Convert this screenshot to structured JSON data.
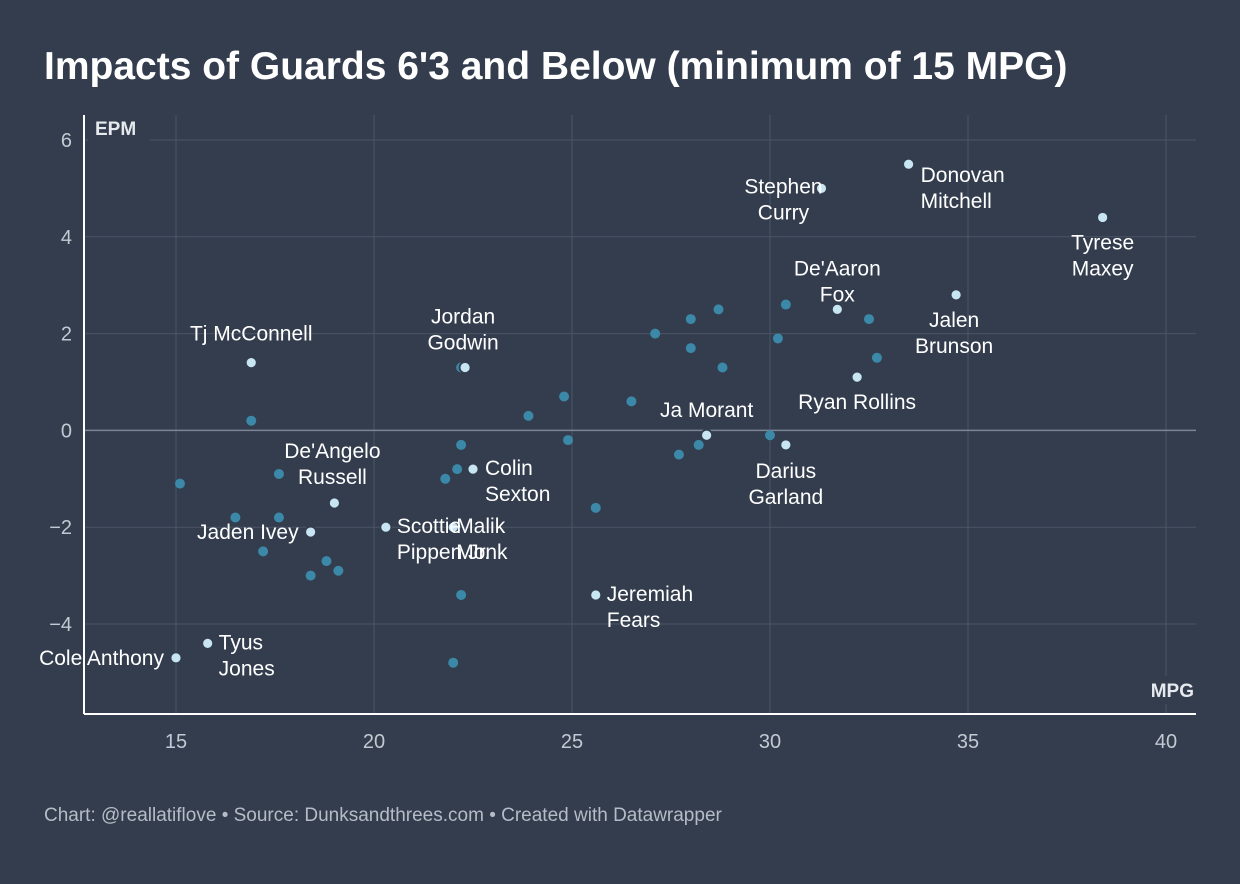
{
  "title": "Impacts of Guards 6'3 and Below (minimum of 15 MPG)",
  "footer": "Chart: @reallatiflove • Source: Dunksandthrees.com • Created with Datawrapper",
  "colors": {
    "background": "#333d4d",
    "grid": "#4a5566",
    "axis": "#ffffff",
    "zero_line": "#7c8594",
    "point": "#3b88a8",
    "highlight_fill": "#c7e5f2",
    "highlight_stroke": "#333d4d",
    "label": "#ffffff"
  },
  "chart_data": {
    "type": "scatter",
    "title": "Impacts of Guards 6'3 and Below (minimum of 15 MPG)",
    "xlabel": "MPG",
    "ylabel": "EPM",
    "xlim": [
      12.7,
      40.8
    ],
    "ylim": [
      -5.8,
      6.5
    ],
    "xticks": [
      15,
      20,
      25,
      30,
      35,
      40
    ],
    "yticks": [
      -4,
      -2,
      0,
      2,
      4,
      6
    ],
    "ytick_labels": [
      "−4",
      "−2",
      "0",
      "2",
      "4",
      "6"
    ],
    "grid": true,
    "points": [
      {
        "x": 33.5,
        "y": 5.5,
        "label": [
          "Donovan",
          "Mitchell"
        ],
        "highlight": true
      },
      {
        "x": 31.3,
        "y": 5.0,
        "label": [
          "Stephen",
          "Curry"
        ],
        "highlight": true
      },
      {
        "x": 38.4,
        "y": 4.4,
        "label": [
          "Tyrese",
          "Maxey"
        ],
        "highlight": true
      },
      {
        "x": 31.7,
        "y": 2.5,
        "label": [
          "De'Aaron",
          "Fox"
        ],
        "highlight": true
      },
      {
        "x": 34.7,
        "y": 2.8,
        "label": [
          "Jalen",
          "Brunson"
        ],
        "highlight": true
      },
      {
        "x": 32.2,
        "y": 1.1,
        "label": [
          "Ryan Rollins"
        ],
        "highlight": true
      },
      {
        "x": 16.9,
        "y": 1.4,
        "label": [
          "Tj McConnell"
        ],
        "highlight": true
      },
      {
        "x": 22.3,
        "y": 1.3,
        "label": [
          "Jordan",
          "Godwin"
        ],
        "highlight": true
      },
      {
        "x": 28.4,
        "y": -0.1,
        "label": [
          "Ja Morant"
        ],
        "highlight": true
      },
      {
        "x": 30.4,
        "y": -0.3,
        "label": [
          "Darius",
          "Garland"
        ],
        "highlight": true
      },
      {
        "x": 19.0,
        "y": -1.5,
        "label": [
          "De'Angelo",
          "Russell"
        ],
        "highlight": true
      },
      {
        "x": 22.5,
        "y": -0.8,
        "label": [
          "Colin",
          "Sexton"
        ],
        "highlight": true
      },
      {
        "x": 18.4,
        "y": -2.1,
        "label": [
          "Jaden Ivey"
        ],
        "highlight": true
      },
      {
        "x": 20.3,
        "y": -2.0,
        "label": [
          "Scottie",
          "Pippen Jr."
        ],
        "highlight": true
      },
      {
        "x": 22.0,
        "y": -2.0,
        "label": [
          "Malik",
          "Monk"
        ],
        "highlight": true
      },
      {
        "x": 25.6,
        "y": -3.4,
        "label": [
          "Jeremiah",
          "Fears"
        ],
        "highlight": true
      },
      {
        "x": 15.8,
        "y": -4.4,
        "label": [
          "Tyus",
          "Jones"
        ],
        "highlight": true
      },
      {
        "x": 15.0,
        "y": -4.7,
        "label": [
          "Cole Anthony"
        ],
        "highlight": true
      },
      {
        "x": 30.4,
        "y": 2.6
      },
      {
        "x": 28.7,
        "y": 2.5
      },
      {
        "x": 28.0,
        "y": 2.3
      },
      {
        "x": 32.5,
        "y": 2.3
      },
      {
        "x": 27.1,
        "y": 2.0
      },
      {
        "x": 30.2,
        "y": 1.9
      },
      {
        "x": 28.0,
        "y": 1.7
      },
      {
        "x": 32.7,
        "y": 1.5
      },
      {
        "x": 28.8,
        "y": 1.3
      },
      {
        "x": 22.2,
        "y": 1.3
      },
      {
        "x": 24.8,
        "y": 0.7
      },
      {
        "x": 26.5,
        "y": 0.6
      },
      {
        "x": 23.9,
        "y": 0.3
      },
      {
        "x": 16.9,
        "y": 0.2
      },
      {
        "x": 24.9,
        "y": -0.2
      },
      {
        "x": 22.2,
        "y": -0.3
      },
      {
        "x": 28.2,
        "y": -0.3
      },
      {
        "x": 30.0,
        "y": -0.1
      },
      {
        "x": 27.7,
        "y": -0.5
      },
      {
        "x": 22.1,
        "y": -0.8
      },
      {
        "x": 17.6,
        "y": -0.9
      },
      {
        "x": 21.8,
        "y": -1.0
      },
      {
        "x": 15.1,
        "y": -1.1
      },
      {
        "x": 25.6,
        "y": -1.6
      },
      {
        "x": 16.5,
        "y": -1.8
      },
      {
        "x": 17.6,
        "y": -1.8
      },
      {
        "x": 17.2,
        "y": -2.5
      },
      {
        "x": 18.8,
        "y": -2.7
      },
      {
        "x": 19.1,
        "y": -2.9
      },
      {
        "x": 18.4,
        "y": -3.0
      },
      {
        "x": 22.2,
        "y": -3.4
      },
      {
        "x": 22.0,
        "y": -4.8
      }
    ]
  }
}
